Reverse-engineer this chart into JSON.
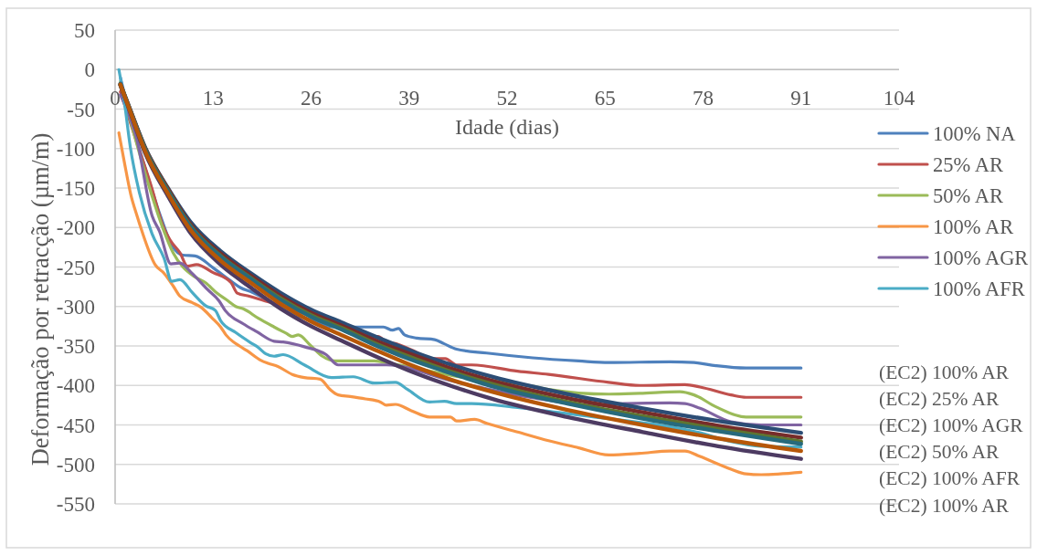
{
  "chart_data": {
    "type": "line",
    "xlabel": "Idade (dias)",
    "ylabel": "Deformação por retracção (µm/m)",
    "xlim": [
      0,
      104
    ],
    "xticks": [
      0,
      13,
      26,
      39,
      52,
      65,
      78,
      91,
      104
    ],
    "ylim": [
      -550,
      50
    ],
    "yticks": [
      -550,
      -500,
      -450,
      -400,
      -350,
      -300,
      -250,
      -200,
      -150,
      -100,
      -50,
      0,
      50
    ],
    "grid": "y",
    "legend": "right",
    "annotations": [
      "(EC2) 100% AR",
      "(EC2) 25% AR",
      "(EC2) 100% AGR",
      "(EC2) 50% AR",
      "(EC2) 100% AFR",
      "(EC2) 100% AR"
    ],
    "series": [
      {
        "name": "100% NA",
        "color": "#4f81bd",
        "x": [
          0.7,
          2,
          4,
          6,
          7.5,
          9,
          10.6,
          13,
          15.4,
          16.6,
          18.2,
          21.1,
          23.5,
          26,
          29.2,
          35.6,
          36.8,
          37.6,
          38.4,
          40,
          42.4,
          43.6,
          45.3,
          49.3,
          55.4,
          61.5,
          65.5,
          73.6,
          76.8,
          79.7,
          83.7,
          91
        ],
        "values": [
          -10,
          -60,
          -125,
          -185,
          -222,
          -235,
          -236,
          -251,
          -268,
          -276,
          -282,
          -296,
          -309,
          -317,
          -326,
          -326,
          -330,
          -328,
          -336,
          -340,
          -342,
          -347,
          -354,
          -359,
          -365,
          -369,
          -371,
          -370,
          -371,
          -375,
          -378,
          -378
        ]
      },
      {
        "name": "25% AR",
        "color": "#c0504d",
        "x": [
          0.7,
          2.9,
          4.9,
          6.3,
          7.3,
          8.6,
          9.6,
          10.8,
          13,
          15.4,
          16.2,
          17.8,
          19.9,
          21.1,
          24,
          28,
          32.9,
          34.9,
          36,
          37.2,
          39.3,
          42.2,
          43.8,
          45.3,
          47.3,
          53.4,
          57.5,
          65.5,
          69.6,
          75.6,
          77.6,
          81.7,
          83.7,
          91
        ],
        "values": [
          -28,
          -93,
          -151,
          -197,
          -216,
          -232,
          -249,
          -247,
          -257,
          -270,
          -283,
          -287,
          -293,
          -296,
          -305,
          -320,
          -338,
          -338,
          -345,
          -347,
          -355,
          -366,
          -366,
          -374,
          -374,
          -382,
          -386,
          -396,
          -400,
          -399,
          -402,
          -412,
          -415,
          -415
        ]
      },
      {
        "name": "50% AR",
        "color": "#9bbb59",
        "x": [
          0.7,
          2.9,
          4.9,
          6.5,
          7.7,
          9,
          10.5,
          12,
          13.5,
          15,
          16,
          17,
          19,
          21.1,
          22.7,
          23.5,
          24.3,
          25.9,
          27.5,
          29.2,
          34.4,
          36.5,
          45,
          55.4,
          57.5,
          65.5,
          69.6,
          74.9,
          76.8,
          79.7,
          83.7,
          91
        ],
        "values": [
          -15,
          -95,
          -160,
          -205,
          -232,
          -250,
          -262,
          -270,
          -283,
          -293,
          -300,
          -303,
          -315,
          -326,
          -334,
          -338,
          -336,
          -349,
          -363,
          -369,
          -369,
          -372,
          -388,
          -401,
          -405,
          -411,
          -410,
          -408,
          -412,
          -427,
          -440,
          -440
        ]
      },
      {
        "name": "100% AR",
        "color": "#f79646",
        "x": [
          0.5,
          1.2,
          2.1,
          2.9,
          3.5,
          5.3,
          6.5,
          7.7,
          8.6,
          10.2,
          11.4,
          12.8,
          14,
          14.7,
          16.5,
          17.5,
          19.3,
          20.3,
          21.6,
          23.5,
          25.1,
          27.2,
          28.5,
          29.6,
          31.2,
          33.2,
          35.2,
          36,
          37.2,
          39.3,
          41.7,
          44.5,
          45.3,
          47.7,
          49.3,
          53.4,
          57.5,
          61.5,
          65.5,
          69.6,
          73.6,
          75.6,
          77.6,
          81.7,
          83.7,
          85.7,
          91
        ],
        "values": [
          -80,
          -116,
          -159,
          -185,
          -203,
          -247,
          -258,
          -274,
          -287,
          -295,
          -301,
          -314,
          -326,
          -336,
          -350,
          -356,
          -368,
          -372,
          -376,
          -386,
          -390,
          -392,
          -405,
          -412,
          -414,
          -417,
          -421,
          -425,
          -424,
          -432,
          -440,
          -440,
          -445,
          -443,
          -448,
          -459,
          -470,
          -479,
          -488,
          -486,
          -483,
          -483,
          -490,
          -506,
          -512,
          -513,
          -510
        ]
      },
      {
        "name": "100% AGR",
        "color": "#8064a2",
        "x": [
          0.7,
          2.9,
          4.9,
          5.9,
          7.4,
          8.6,
          10.2,
          12.2,
          13.8,
          14.6,
          17,
          18.8,
          21.1,
          22.3,
          25.1,
          28,
          29.6,
          36,
          45,
          55,
          63.5,
          67.6,
          73.6,
          75.6,
          77.6,
          81.7,
          85.7,
          91
        ],
        "values": [
          -32,
          -89,
          -185,
          -205,
          -246,
          -245,
          -258,
          -278,
          -293,
          -305,
          -322,
          -332,
          -344,
          -345,
          -351,
          -361,
          -374,
          -374,
          -395,
          -415,
          -425,
          -423,
          -422,
          -423,
          -429,
          -446,
          -450,
          -450
        ]
      },
      {
        "name": "100% AFR",
        "color": "#4bacc6",
        "x": [
          0.5,
          1.2,
          2,
          3.2,
          4.9,
          6.5,
          7.5,
          8.6,
          10.2,
          12,
          13.3,
          14,
          16,
          18,
          19,
          20,
          21.1,
          22.3,
          25.1,
          28.7,
          31.6,
          34.4,
          37.2,
          38.8,
          41.7,
          43.7,
          45.3,
          47.3,
          53.4,
          63.6,
          65.5,
          77.6,
          81.7,
          85.7,
          91
        ],
        "values": [
          0,
          -39,
          -97,
          -155,
          -208,
          -239,
          -268,
          -266,
          -282,
          -299,
          -305,
          -318,
          -333,
          -346,
          -352,
          -360,
          -363,
          -361,
          -374,
          -390,
          -389,
          -397,
          -396,
          -405,
          -421,
          -420,
          -423,
          -423,
          -428,
          -440,
          -442,
          -460,
          -471,
          -477,
          -478
        ]
      },
      {
        "color": "#2c4d75",
        "x": [
          0.7,
          2,
          4,
          7,
          10,
          14,
          18,
          22,
          26,
          30,
          35,
          40,
          45,
          50,
          60,
          70,
          80,
          91
        ],
        "values": [
          -18,
          -51,
          -99,
          -150,
          -193,
          -230,
          -258,
          -283,
          -304,
          -320,
          -340,
          -359,
          -375,
          -389,
          -411,
          -429,
          -445,
          -460
        ]
      },
      {
        "color": "#772c2a",
        "x": [
          0.7,
          2,
          4,
          7,
          10,
          14,
          18,
          22,
          26,
          30,
          35,
          40,
          45,
          50,
          60,
          70,
          80,
          91
        ],
        "values": [
          -19,
          -51,
          -100,
          -151,
          -196,
          -233,
          -261,
          -287,
          -308,
          -324,
          -345,
          -363,
          -380,
          -394,
          -416,
          -434,
          -451,
          -466
        ]
      },
      {
        "color": "#5f7530",
        "x": [
          0.7,
          2,
          4,
          7,
          10,
          14,
          18,
          22,
          26,
          30,
          35,
          40,
          45,
          50,
          60,
          70,
          80,
          91
        ],
        "values": [
          -19,
          -52,
          -101,
          -153,
          -198,
          -236,
          -264,
          -290,
          -311,
          -327,
          -349,
          -367,
          -384,
          -398,
          -421,
          -439,
          -455,
          -471
        ]
      },
      {
        "color": "#4d3b62",
        "x": [
          0.7,
          2,
          4,
          7,
          10,
          14,
          18,
          22,
          26,
          30,
          35,
          40,
          45,
          50,
          60,
          70,
          80,
          91
        ],
        "values": [
          -20,
          -54,
          -106,
          -160,
          -207,
          -247,
          -276,
          -303,
          -325,
          -343,
          -365,
          -385,
          -402,
          -417,
          -440,
          -459,
          -477,
          -493
        ]
      },
      {
        "color": "#276a7c",
        "x": [
          0.7,
          2,
          4,
          7,
          10,
          14,
          18,
          22,
          26,
          30,
          35,
          40,
          45,
          50,
          60,
          70,
          80,
          91
        ],
        "values": [
          -19,
          -52,
          -102,
          -154,
          -199,
          -237,
          -265,
          -292,
          -313,
          -329,
          -351,
          -370,
          -386,
          -401,
          -423,
          -442,
          -458,
          -474
        ]
      },
      {
        "color": "#b65708",
        "x": [
          0.7,
          2,
          4,
          7,
          10,
          14,
          18,
          22,
          26,
          30,
          35,
          40,
          45,
          50,
          60,
          70,
          80,
          91
        ],
        "values": [
          -19,
          -53,
          -104,
          -157,
          -203,
          -242,
          -270,
          -297,
          -319,
          -336,
          -357,
          -377,
          -394,
          -408,
          -431,
          -450,
          -467,
          -483
        ]
      }
    ]
  }
}
